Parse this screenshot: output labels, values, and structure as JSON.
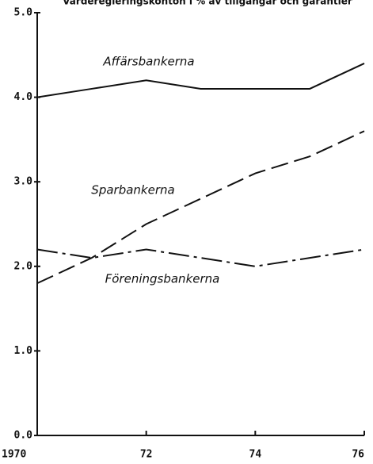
{
  "chart_data": {
    "type": "line",
    "title": "Värderegleringskonton i % av tillgångar och garantier",
    "x": [
      1970,
      1971,
      1972,
      1973,
      1974,
      1975,
      1976
    ],
    "series": [
      {
        "name": "Affärsbankerna",
        "color": "#111111",
        "linestyle": "solid",
        "values": [
          4.0,
          4.1,
          4.2,
          4.1,
          4.1,
          4.1,
          4.4
        ]
      },
      {
        "name": "Sparbankerna",
        "color": "#111111",
        "linestyle": "dashed",
        "values": [
          1.8,
          2.1,
          2.5,
          2.8,
          3.1,
          3.3,
          3.6
        ]
      },
      {
        "name": "Föreningsbankerna",
        "color": "#111111",
        "linestyle": "dashdot",
        "values": [
          2.2,
          2.1,
          2.2,
          2.1,
          2.0,
          2.1,
          2.2
        ]
      }
    ],
    "xlim": [
      1970,
      1976
    ],
    "xticks": [
      1970,
      {
        "value": 1972,
        "label": "72"
      },
      {
        "value": 1974,
        "label": "74"
      },
      {
        "value": 1976,
        "label": "76"
      }
    ],
    "ylim": [
      0,
      5
    ],
    "yticks": [
      {
        "value": 0,
        "label": "0.0"
      },
      {
        "value": 1,
        "label": "1.0"
      },
      {
        "value": 2,
        "label": "2.0"
      },
      {
        "value": 3,
        "label": "3.0"
      },
      {
        "value": 4,
        "label": "4.0"
      },
      {
        "value": 5,
        "label": "5.0"
      }
    ],
    "grid": false
  }
}
